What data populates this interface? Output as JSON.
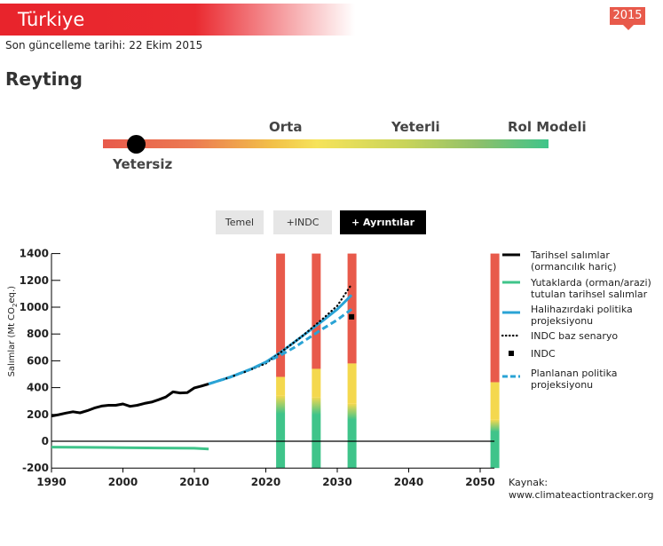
{
  "header": {
    "country": "Türkiye",
    "updated": "Son güncelleme tarihi: 22 Ekim 2015",
    "year_badge": "2015",
    "heading": "Reyting"
  },
  "rating": {
    "current": "Yetersiz",
    "scale": [
      "Yetersiz",
      "Orta",
      "Yeterli",
      "Rol Modeli"
    ],
    "position": 0.07,
    "colors": [
      "#e85a4b",
      "#f6e35a",
      "#8fc06a",
      "#3fc48a"
    ]
  },
  "tabs": [
    {
      "label": "Temel",
      "active": false
    },
    {
      "label": "+INDC",
      "active": false
    },
    {
      "label": "+ Ayrıntılar",
      "active": true
    }
  ],
  "legend": [
    {
      "label": "Tarihsel salımlar (ormancılık hariç)",
      "color": "#000000",
      "style": "solid"
    },
    {
      "label": "Yutaklarda (orman/arazi) tutulan tarihsel salımlar",
      "color": "#3fc48a",
      "style": "solid"
    },
    {
      "label": "Halihazırdaki politika projeksiyonu",
      "color": "#2aa3d5",
      "style": "solid"
    },
    {
      "label": "INDC baz senaryo",
      "color": "#000000",
      "style": "dotted"
    },
    {
      "label": "INDC",
      "color": "#000000",
      "style": "square"
    },
    {
      "label": "Planlanan politika projeksiyonu",
      "color": "#2aa3d5",
      "style": "dashed"
    }
  ],
  "source": {
    "label": "Kaynak:",
    "url": "www.climateactiontracker.org"
  },
  "chart_data": {
    "type": "line",
    "ylabel": "Salımlar (Mt CO",
    "ylabel_sub": "2",
    "ylabel_suffix": "eq.)",
    "xlim": [
      1990,
      2052
    ],
    "ylim": [
      -200,
      1400
    ],
    "xticks": [
      1990,
      2000,
      2010,
      2020,
      2030,
      2040,
      2050
    ],
    "yticks": [
      -200,
      0,
      200,
      400,
      600,
      800,
      1000,
      1200,
      1400
    ],
    "series": [
      {
        "key": "historical",
        "color": "#000000",
        "style": "solid",
        "points": [
          [
            1990,
            188
          ],
          [
            1991,
            198
          ],
          [
            1992,
            210
          ],
          [
            1993,
            220
          ],
          [
            1994,
            212
          ],
          [
            1995,
            228
          ],
          [
            1996,
            248
          ],
          [
            1997,
            262
          ],
          [
            1998,
            268
          ],
          [
            1999,
            268
          ],
          [
            2000,
            278
          ],
          [
            2001,
            260
          ],
          [
            2002,
            268
          ],
          [
            2003,
            282
          ],
          [
            2004,
            292
          ],
          [
            2005,
            310
          ],
          [
            2006,
            330
          ],
          [
            2007,
            368
          ],
          [
            2008,
            360
          ],
          [
            2009,
            362
          ],
          [
            2010,
            398
          ],
          [
            2011,
            412
          ],
          [
            2012,
            428
          ]
        ]
      },
      {
        "key": "sinks",
        "color": "#3fc48a",
        "style": "solid",
        "points": [
          [
            1990,
            -44
          ],
          [
            1995,
            -46
          ],
          [
            2000,
            -48
          ],
          [
            2005,
            -50
          ],
          [
            2010,
            -52
          ],
          [
            2012,
            -58
          ]
        ]
      },
      {
        "key": "current_policy",
        "color": "#2aa3d5",
        "style": "solid",
        "points": [
          [
            2012,
            428
          ],
          [
            2015,
            478
          ],
          [
            2018,
            540
          ],
          [
            2020,
            590
          ],
          [
            2022,
            660
          ],
          [
            2024,
            740
          ],
          [
            2026,
            820
          ],
          [
            2028,
            900
          ],
          [
            2030,
            985
          ],
          [
            2032,
            1090
          ]
        ]
      },
      {
        "key": "indc_baseline",
        "color": "#000000",
        "style": "dotted",
        "points": [
          [
            2014,
            460
          ],
          [
            2017,
            515
          ],
          [
            2020,
            580
          ],
          [
            2022,
            660
          ],
          [
            2025,
            780
          ],
          [
            2028,
            915
          ],
          [
            2030,
            1010
          ],
          [
            2032,
            1170
          ]
        ]
      },
      {
        "key": "planned_policy",
        "color": "#2aa3d5",
        "style": "dashed",
        "points": [
          [
            2012,
            428
          ],
          [
            2015,
            478
          ],
          [
            2018,
            540
          ],
          [
            2020,
            590
          ],
          [
            2022,
            640
          ],
          [
            2024,
            700
          ],
          [
            2026,
            770
          ],
          [
            2028,
            840
          ],
          [
            2030,
            905
          ],
          [
            2032,
            985
          ]
        ]
      }
    ],
    "indc_point": {
      "x": 2032,
      "y": 928
    },
    "rating_columns": [
      {
        "x": 2022,
        "red_top": 1400,
        "yellow_top": 480,
        "green_top": 340
      },
      {
        "x": 2027,
        "red_top": 1400,
        "yellow_top": 540,
        "green_top": 330
      },
      {
        "x": 2032,
        "red_top": 1400,
        "yellow_top": 580,
        "green_top": 280
      },
      {
        "x": 2052,
        "red_top": 1400,
        "yellow_top": 440,
        "green_top": 160
      }
    ]
  }
}
